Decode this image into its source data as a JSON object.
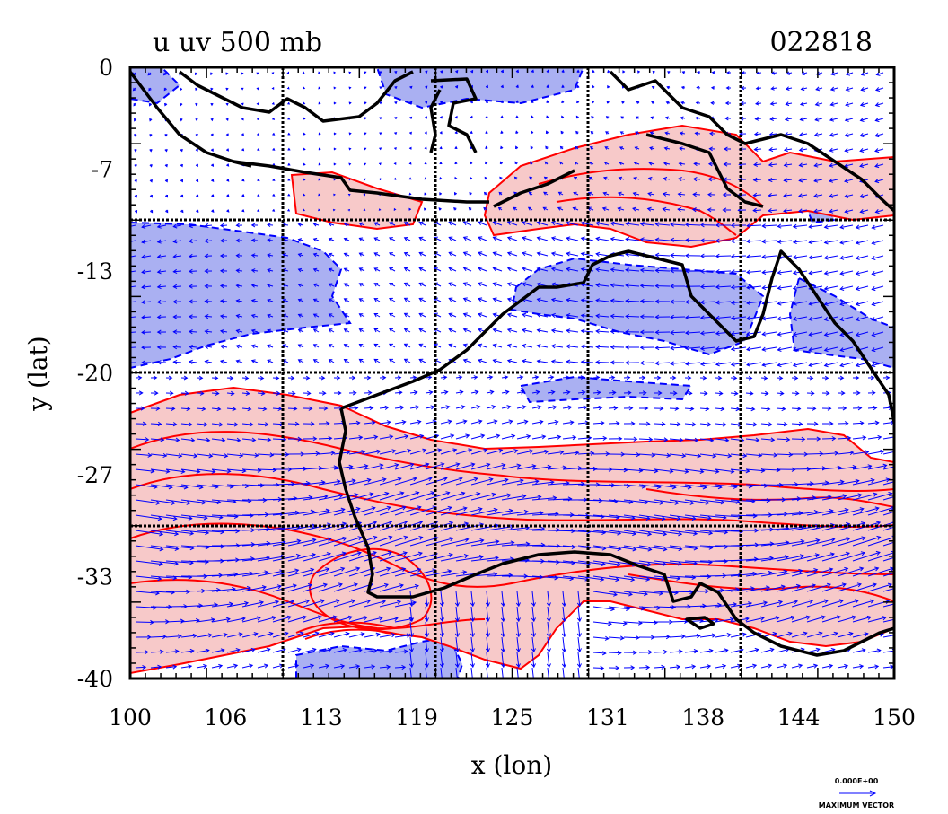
{
  "chart_data": {
    "type": "contour-map",
    "title": "u uv 500 mb",
    "timestamp": "022818",
    "xlabel": "x (lon)",
    "ylabel": "y (lat)",
    "xlim": [
      100,
      150
    ],
    "ylim": [
      -40,
      0
    ],
    "x_ticks": [
      "100",
      "106",
      "113",
      "119",
      "125",
      "131",
      "138",
      "144",
      "150"
    ],
    "y_ticks": [
      "0",
      "-7",
      "-13",
      "-20",
      "-27",
      "-33",
      "-40"
    ],
    "x_tick_values": [
      100,
      106.25,
      112.5,
      118.75,
      125,
      131.25,
      137.5,
      143.75,
      150
    ],
    "y_tick_values": [
      0,
      -6.67,
      -13.33,
      -20,
      -26.67,
      -33.33,
      -40
    ],
    "grid_lon": [
      110,
      120,
      130,
      140
    ],
    "grid_lat": [
      -10,
      -20,
      -30
    ],
    "grid": true,
    "colors": {
      "positive_fill": "#f7c9c9",
      "positive_line": "#ff0000",
      "negative_fill": "#aab0f2",
      "negative_line": "#0000ff",
      "vectors": "#0000ff",
      "coast": "#000000"
    },
    "reference_vector": {
      "value_label": "0.000E+00",
      "caption": "MAXIMUM VECTOR"
    }
  }
}
